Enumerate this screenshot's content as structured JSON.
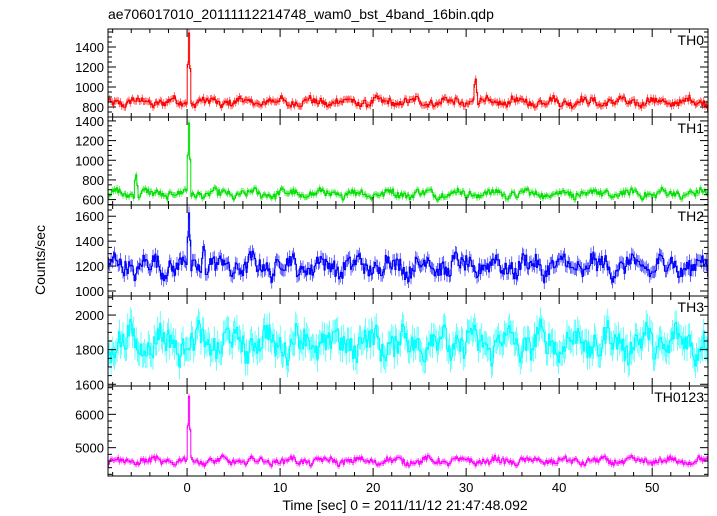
{
  "figure": {
    "title": "ae706017010_20111112214748_wam0_bst_4band_16bin.qdp",
    "ylabel": "Counts/sec",
    "xlabel": "Time [sec] 0 = 2011/11/12 21:47:48.092"
  },
  "chart_data": {
    "type": "line",
    "shared_x": true,
    "xlim": [
      -8.5,
      56
    ],
    "x_ticks": [
      0,
      10,
      20,
      30,
      40,
      50
    ],
    "x_tick_labels": [
      "0",
      "10",
      "20",
      "30",
      "40",
      "50"
    ],
    "grid": false,
    "panels": [
      {
        "name": "TH0",
        "label": "TH0",
        "color": "#ff0000",
        "ylim": [
          700,
          1580
        ],
        "y_ticks": [
          800,
          1000,
          1200,
          1400
        ],
        "y_tick_labels": [
          "800",
          "1000",
          "1200",
          "1400"
        ],
        "baseline": 850,
        "noise": 45,
        "error": 35,
        "features": [
          {
            "x": 0.2,
            "peak": 1560
          },
          {
            "x": 31,
            "peak": 1120
          }
        ]
      },
      {
        "name": "TH1",
        "label": "TH1",
        "color": "#00e000",
        "ylim": [
          545,
          1440
        ],
        "y_ticks": [
          600,
          800,
          1000,
          1200,
          1400
        ],
        "y_tick_labels": [
          "600",
          "800",
          "1000",
          "1200",
          "1400"
        ],
        "baseline": 660,
        "noise": 45,
        "error": 30,
        "features": [
          {
            "x": 0.2,
            "peak": 1400
          },
          {
            "x": -5.5,
            "peak": 880
          }
        ]
      },
      {
        "name": "TH2",
        "label": "TH2",
        "color": "#0000ff",
        "ylim": [
          960,
          1690
        ],
        "y_ticks": [
          1000,
          1200,
          1400,
          1600
        ],
        "y_tick_labels": [
          "1000",
          "1200",
          "1400",
          "1600"
        ],
        "baseline": 1200,
        "noise": 85,
        "error": 50,
        "features": [
          {
            "x": 0.2,
            "peak": 1640
          },
          {
            "x": 1.8,
            "peak": 1390
          }
        ]
      },
      {
        "name": "TH3",
        "label": "TH3",
        "color": "#00ffff",
        "ylim": [
          1590,
          2110
        ],
        "y_ticks": [
          1600,
          1800,
          2000
        ],
        "y_tick_labels": [
          "1600",
          "1800",
          "2000"
        ],
        "baseline": 1840,
        "noise": 90,
        "error": 70,
        "features": []
      },
      {
        "name": "TH0123",
        "label": "TH0123",
        "color": "#ff00ff",
        "ylim": [
          4150,
          6850
        ],
        "y_ticks": [
          5000,
          6000
        ],
        "y_tick_labels": [
          "5000",
          "6000"
        ],
        "baseline": 4600,
        "noise": 110,
        "error": 80,
        "features": [
          {
            "x": 0.2,
            "peak": 6600
          }
        ]
      }
    ]
  }
}
